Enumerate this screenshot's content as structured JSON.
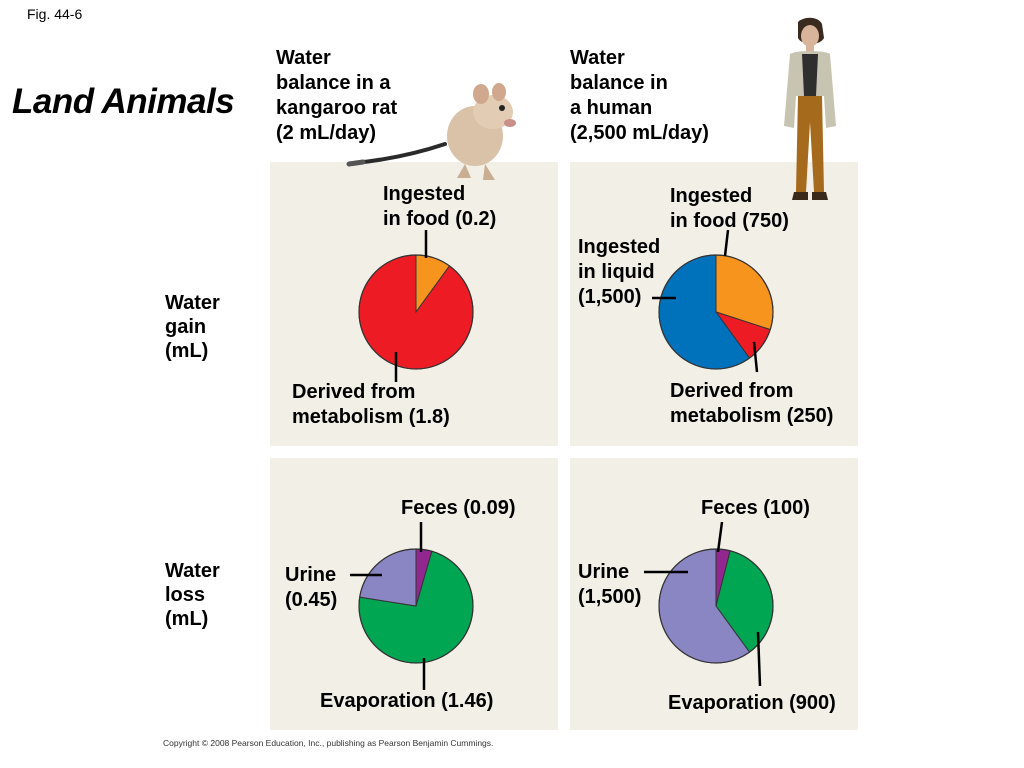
{
  "fig_label": "Fig. 44-6",
  "title": "Land Animals",
  "column_headers": [
    "Water\nbalance in a\nkangaroo rat\n(2 mL/day)",
    "Water\nbalance in\na human\n(2,500 mL/day)"
  ],
  "row_headers": [
    "Water\ngain\n(mL)",
    "Water\nloss\n(mL)"
  ],
  "copyright": "Copyright © 2008 Pearson Education, Inc., publishing as Pearson Benjamin Cummings.",
  "colors": {
    "panel": "#f2efe7",
    "food": "#f7941d",
    "metabolism": "#ed1c24",
    "liquid": "#0072bc",
    "feces": "#92278f",
    "urine": "#8a86c4",
    "evaporation": "#00a651"
  },
  "chart_data": [
    {
      "type": "pie",
      "subject": "kangaroo rat",
      "row": "Water gain (mL)",
      "slices": [
        {
          "label": "Ingested\nin food (0.2)",
          "value": 0.2,
          "color": "#f7941d"
        },
        {
          "label": "Derived from\nmetabolism (1.8)",
          "value": 1.8,
          "color": "#ed1c24"
        }
      ]
    },
    {
      "type": "pie",
      "subject": "human",
      "row": "Water gain (mL)",
      "slices": [
        {
          "label": "Ingested\nin food (750)",
          "value": 750,
          "color": "#f7941d"
        },
        {
          "label": "Derived from\nmetabolism (250)",
          "value": 250,
          "color": "#ed1c24"
        },
        {
          "label": "Ingested\nin liquid\n(1,500)",
          "value": 1500,
          "color": "#0072bc"
        }
      ]
    },
    {
      "type": "pie",
      "subject": "kangaroo rat",
      "row": "Water loss (mL)",
      "slices": [
        {
          "label": "Feces (0.09)",
          "value": 0.09,
          "color": "#92278f"
        },
        {
          "label": "Evaporation (1.46)",
          "value": 1.46,
          "color": "#00a651"
        },
        {
          "label": "Urine\n(0.45)",
          "value": 0.45,
          "color": "#8a86c4"
        }
      ]
    },
    {
      "type": "pie",
      "subject": "human",
      "row": "Water loss (mL)",
      "slices": [
        {
          "label": "Feces (100)",
          "value": 100,
          "color": "#92278f"
        },
        {
          "label": "Evaporation (900)",
          "value": 900,
          "color": "#00a651"
        },
        {
          "label": "Urine\n(1,500)",
          "value": 1500,
          "color": "#8a86c4"
        }
      ]
    }
  ]
}
